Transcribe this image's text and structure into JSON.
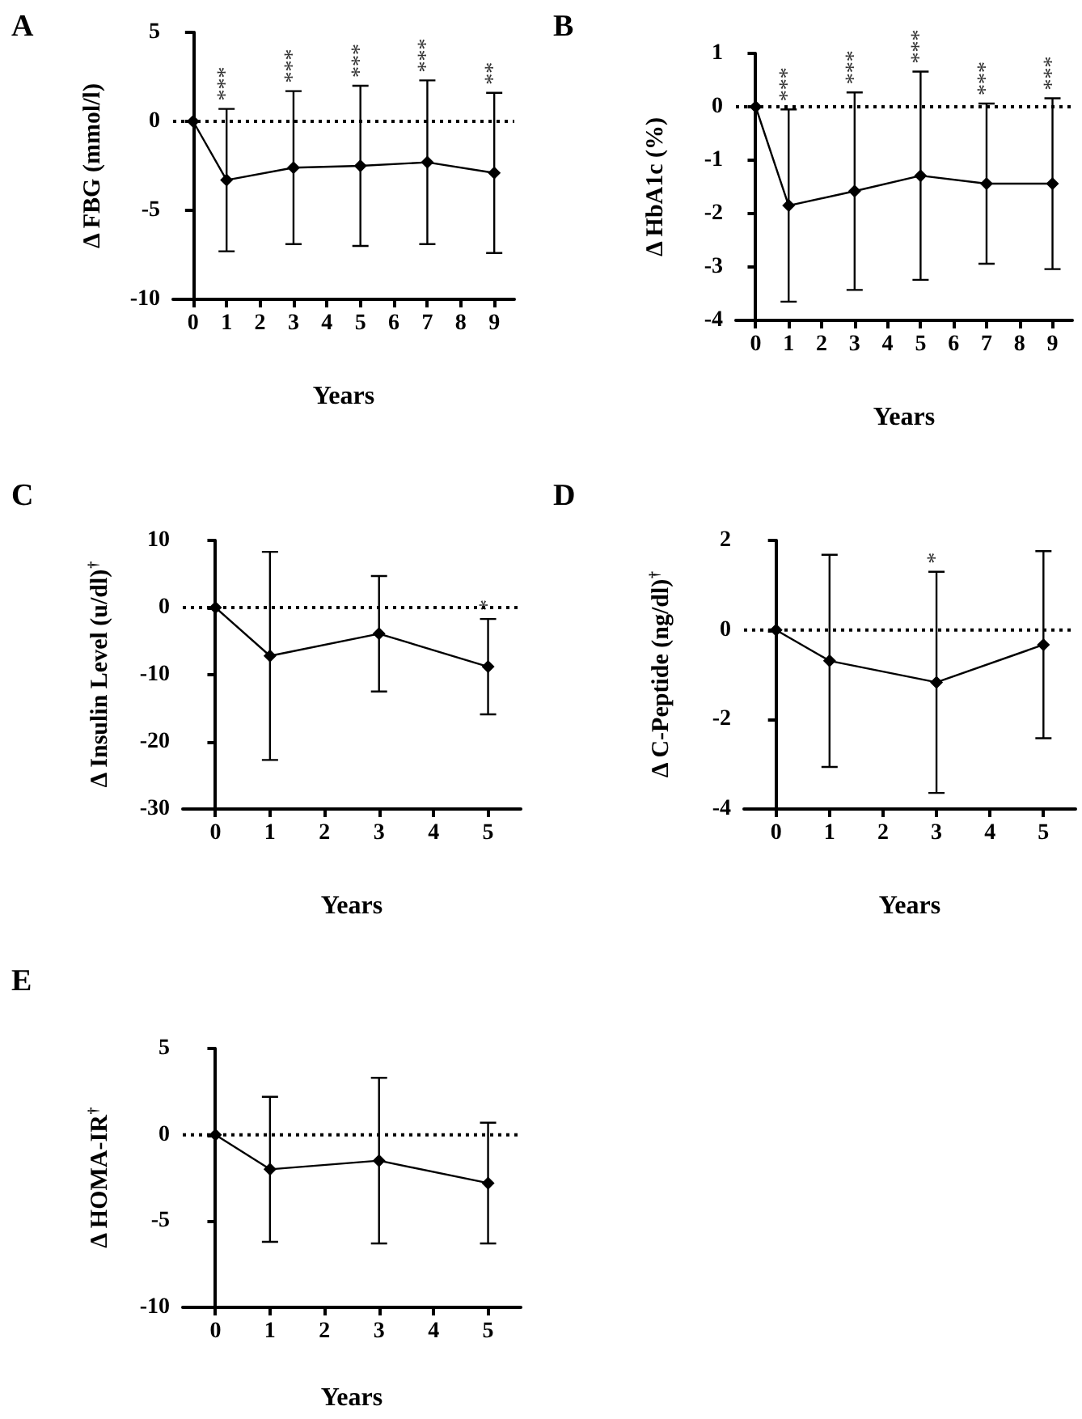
{
  "chart_data": [
    {
      "type": "line",
      "title": "A",
      "xlabel": "Years",
      "ylabel": "Δ FBG (mmol/l)",
      "x": [
        0,
        1,
        3,
        5,
        7,
        9
      ],
      "xlim": [
        -0.6,
        9.6
      ],
      "xticks": [
        0,
        1,
        2,
        3,
        4,
        5,
        6,
        7,
        8,
        9
      ],
      "ylim": [
        -10,
        5
      ],
      "yticks": [
        -10,
        -5,
        0,
        5
      ],
      "marker": "diamond",
      "series": [
        {
          "color": "#000000",
          "values": [
            0,
            -3.3,
            -2.6,
            -2.5,
            -2.3,
            -2.9
          ],
          "errors": [
            null,
            4.0,
            4.3,
            4.5,
            4.6,
            4.5
          ]
        }
      ],
      "ref_lines": [
        {
          "axis": "y",
          "value": 0,
          "line_style": "dotted",
          "color": "#000000"
        }
      ],
      "annotations": [
        {
          "text": "***",
          "x": 1,
          "y": 0.7
        },
        {
          "text": "***",
          "x": 3,
          "y": 1.7
        },
        {
          "text": "***",
          "x": 5,
          "y": 2.0
        },
        {
          "text": "***",
          "x": 7,
          "y": 2.3
        },
        {
          "text": "**",
          "x": 9,
          "y": 1.6
        }
      ]
    },
    {
      "type": "line",
      "title": "B",
      "xlabel": "Years",
      "ylabel": "Δ HbA1c (%)",
      "x": [
        0,
        1,
        3,
        5,
        7,
        9
      ],
      "xlim": [
        -0.6,
        9.6
      ],
      "xticks": [
        0,
        1,
        2,
        3,
        4,
        5,
        6,
        7,
        8,
        9
      ],
      "ylim": [
        -4,
        1
      ],
      "yticks": [
        -4,
        -3,
        -2,
        -1,
        0,
        1
      ],
      "marker": "diamond",
      "series": [
        {
          "color": "#000000",
          "values": [
            0,
            -1.85,
            -1.58,
            -1.29,
            -1.44,
            -1.44
          ],
          "errors": [
            null,
            1.8,
            1.85,
            1.95,
            1.5,
            1.6
          ]
        }
      ],
      "ref_lines": [
        {
          "axis": "y",
          "value": 0,
          "line_style": "dotted",
          "color": "#000000"
        }
      ],
      "annotations": [
        {
          "text": "***",
          "x": 1,
          "y": -0.05
        },
        {
          "text": "***",
          "x": 3,
          "y": 0.27
        },
        {
          "text": "***",
          "x": 5,
          "y": 0.66
        },
        {
          "text": "***",
          "x": 7,
          "y": 0.06
        },
        {
          "text": "***",
          "x": 9,
          "y": 0.16
        }
      ]
    },
    {
      "type": "line",
      "title": "C",
      "xlabel": "Years",
      "ylabel": "Δ Insulin Level (u/dl)$^{†}$",
      "x": [
        0,
        1,
        3,
        5
      ],
      "xlim": [
        -0.6,
        5.6
      ],
      "xticks": [
        0,
        1,
        2,
        3,
        4,
        5
      ],
      "ylim": [
        -30,
        10
      ],
      "yticks": [
        -30,
        -20,
        -10,
        0,
        10
      ],
      "marker": "diamond",
      "series": [
        {
          "color": "#000000",
          "values": [
            0,
            -7.2,
            -3.9,
            -8.8
          ],
          "errors": [
            null,
            15.5,
            8.6,
            7.1
          ]
        }
      ],
      "ref_lines": [
        {
          "axis": "y",
          "value": 0,
          "line_style": "dotted",
          "color": "#000000"
        }
      ],
      "annotations": [
        {
          "text": "*",
          "x": 5,
          "y": -1.7
        }
      ]
    },
    {
      "type": "line",
      "title": "D",
      "xlabel": "Years",
      "ylabel": "Δ C-Peptide (ng/dl)$^{†}$",
      "x": [
        0,
        1,
        3,
        5
      ],
      "xlim": [
        -0.6,
        5.6
      ],
      "xticks": [
        0,
        1,
        2,
        3,
        4,
        5
      ],
      "ylim": [
        -4,
        2
      ],
      "yticks": [
        -4,
        -2,
        0,
        2
      ],
      "marker": "diamond",
      "series": [
        {
          "color": "#000000",
          "values": [
            0,
            -0.69,
            -1.17,
            -0.33
          ],
          "errors": [
            null,
            2.37,
            2.47,
            2.09
          ]
        }
      ],
      "ref_lines": [
        {
          "axis": "y",
          "value": 0,
          "line_style": "dotted",
          "color": "#000000"
        }
      ],
      "annotations": [
        {
          "text": "*",
          "x": 3,
          "y": 1.3
        }
      ]
    },
    {
      "type": "line",
      "title": "E",
      "xlabel": "Years",
      "ylabel": "Δ HOMA-IR$^{†}$",
      "x": [
        0,
        1,
        3,
        5
      ],
      "xlim": [
        -0.6,
        5.6
      ],
      "xticks": [
        0,
        1,
        2,
        3,
        4,
        5
      ],
      "ylim": [
        -10,
        5
      ],
      "yticks": [
        -10,
        -5,
        0,
        5
      ],
      "marker": "diamond",
      "series": [
        {
          "color": "#000000",
          "values": [
            0,
            -2.0,
            -1.5,
            -2.8
          ],
          "errors": [
            null,
            4.2,
            4.8,
            3.5
          ]
        }
      ],
      "ref_lines": [
        {
          "axis": "y",
          "value": 0,
          "line_style": "dotted",
          "color": "#000000"
        }
      ]
    }
  ]
}
